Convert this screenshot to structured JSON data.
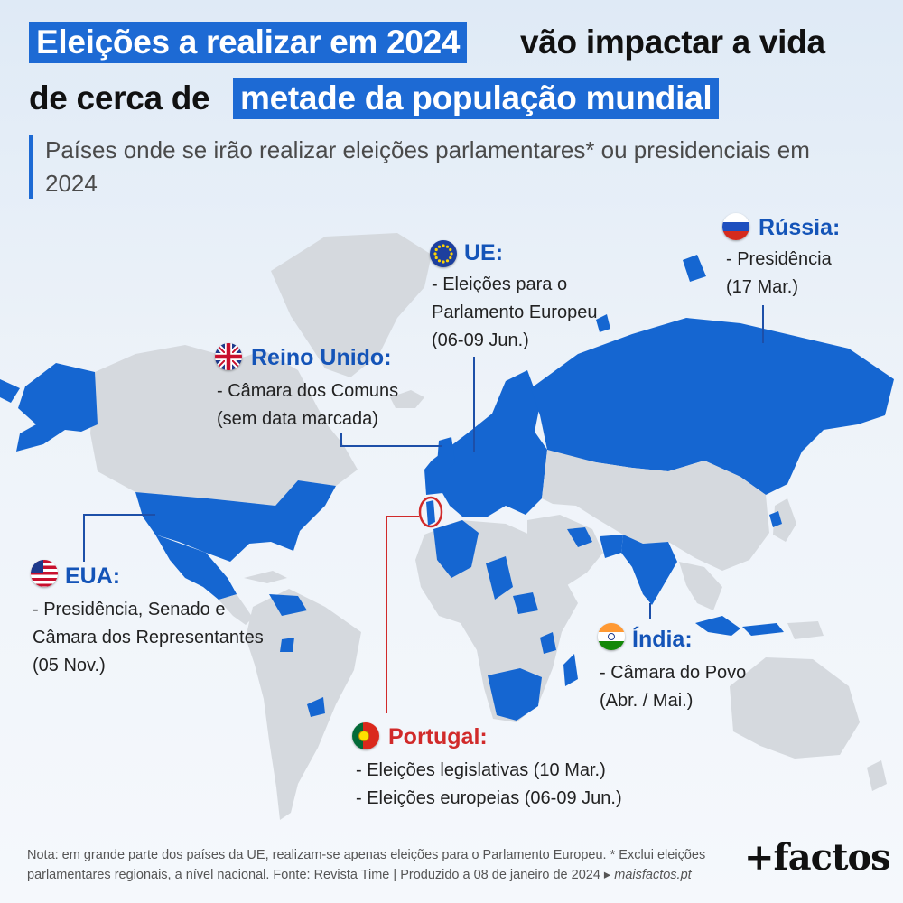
{
  "headline": {
    "line1_highlight": "Eleições a realizar em 2024",
    "line1_rest": "vão impactar a vida",
    "line2_start": "de cerca de",
    "line2_highlight": "metade da população mundial"
  },
  "subtitle": "Países onde se irão realizar eleições parlamentares* ou presidenciais em 2024",
  "callouts": {
    "russia": {
      "name": "Rússia:",
      "lines": [
        "- Presidência",
        "(17 Mar.)"
      ],
      "flag": "russia-flag-icon"
    },
    "eu": {
      "name": "UE:",
      "lines": [
        "- Eleições para o",
        "Parlamento Europeu",
        "(06-09 Jun.)"
      ],
      "flag": "eu-flag-icon"
    },
    "uk": {
      "name": "Reino Unido:",
      "lines": [
        "- Câmara dos Comuns",
        "(sem data marcada)"
      ],
      "flag": "uk-flag-icon"
    },
    "usa": {
      "name": "EUA:",
      "lines": [
        "- Presidência, Senado e",
        "Câmara dos Representantes",
        "(05 Nov.)"
      ],
      "flag": "usa-flag-icon"
    },
    "india": {
      "name": "Índia:",
      "lines": [
        "- Câmara do Povo",
        "(Abr. / Mai.)"
      ],
      "flag": "india-flag-icon"
    },
    "portugal": {
      "name": "Portugal:",
      "lines": [
        "- Eleições legislativas (10 Mar.)",
        "- Eleições europeias (06-09 Jun.)"
      ],
      "flag": "portugal-flag-icon"
    }
  },
  "colors": {
    "election_country": "#1566d1",
    "other_land": "#d5d9de",
    "highlight": "#1d6ad4",
    "portugal_accent": "#d12a2a"
  },
  "footnote": {
    "text": "Nota: em grande parte dos países da UE, realizam-se apenas eleições para o Parlamento Europeu. * Exclui eleições parlamentares regionais, a nível nacional. Fonte: Revista Time | Produzido a 08 de janeiro de 2024 ▸",
    "link": "maisfactos.pt"
  },
  "logo": "+factos"
}
